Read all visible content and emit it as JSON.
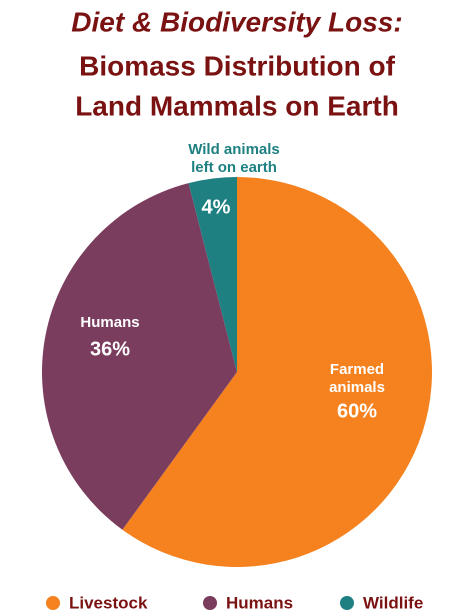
{
  "chart_data": {
    "type": "pie",
    "title": [
      "Diet & Biodiversity Loss:",
      "Biomass Distribution of",
      "Land Mammals on Earth"
    ],
    "categories": [
      "Livestock",
      "Humans",
      "Wildlife"
    ],
    "values": [
      60,
      36,
      4
    ],
    "value_labels": [
      "60%",
      "36%",
      "4%"
    ],
    "slice_labels": [
      [
        "Farmed",
        "animals"
      ],
      [
        "Humans"
      ],
      [
        "Wild animals",
        "left on earth"
      ]
    ],
    "colors": [
      "#f5821f",
      "#7a3d5e",
      "#1f8082"
    ],
    "legend": "bottom"
  }
}
